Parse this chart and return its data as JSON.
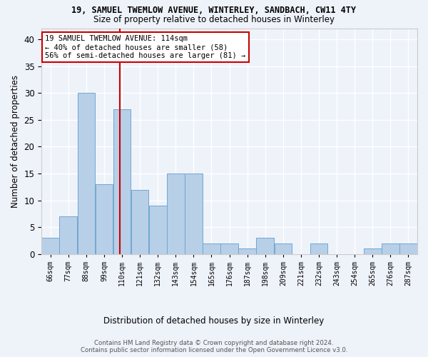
{
  "title": "19, SAMUEL TWEMLOW AVENUE, WINTERLEY, SANDBACH, CW11 4TY",
  "subtitle": "Size of property relative to detached houses in Winterley",
  "xlabel": "Distribution of detached houses by size in Winterley",
  "ylabel": "Number of detached properties",
  "bar_labels": [
    "66sqm",
    "77sqm",
    "88sqm",
    "99sqm",
    "110sqm",
    "121sqm",
    "132sqm",
    "143sqm",
    "154sqm",
    "165sqm",
    "176sqm",
    "187sqm",
    "198sqm",
    "209sqm",
    "221sqm",
    "232sqm",
    "243sqm",
    "254sqm",
    "265sqm",
    "276sqm",
    "287sqm"
  ],
  "bar_values": [
    3,
    7,
    30,
    13,
    27,
    12,
    9,
    15,
    15,
    2,
    2,
    1,
    3,
    2,
    0,
    2,
    0,
    0,
    1,
    2,
    2
  ],
  "bar_color": "#b8cfe8",
  "bar_edge_color": "#6fa8d0",
  "ylim": [
    0,
    42
  ],
  "yticks": [
    0,
    5,
    10,
    15,
    20,
    25,
    30,
    35,
    40
  ],
  "vline_color": "#cc0000",
  "annotation_title": "19 SAMUEL TWEMLOW AVENUE: 114sqm",
  "annotation_line1": "← 40% of detached houses are smaller (58)",
  "annotation_line2": "56% of semi-detached houses are larger (81) →",
  "annotation_box_color": "#ffffff",
  "annotation_border_color": "#cc0000",
  "footer1": "Contains HM Land Registry data © Crown copyright and database right 2024.",
  "footer2": "Contains public sector information licensed under the Open Government Licence v3.0.",
  "background_color": "#eef2f9",
  "grid_color": "#ffffff"
}
